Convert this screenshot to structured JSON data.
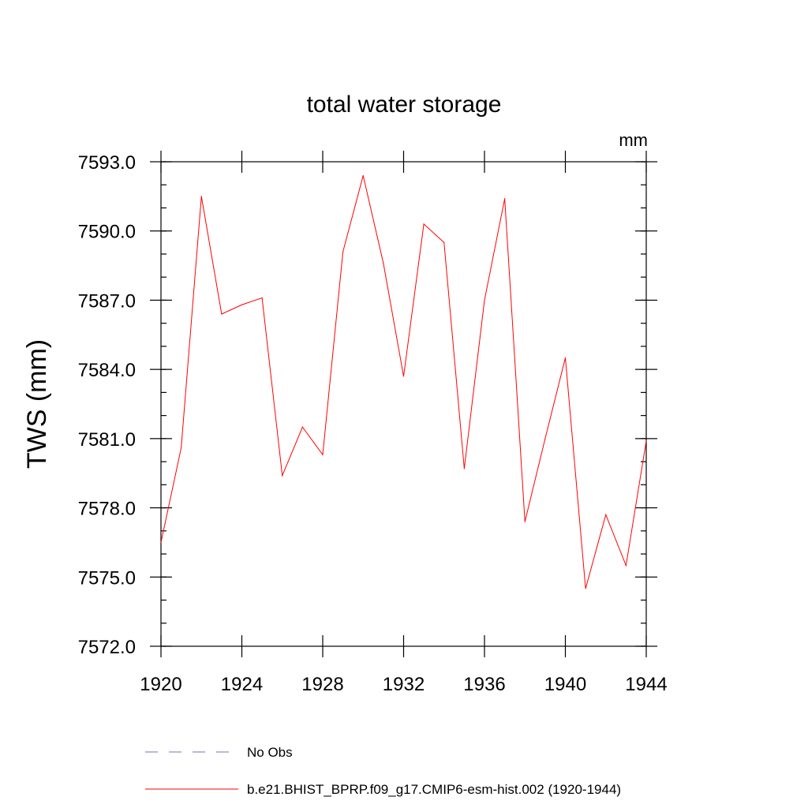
{
  "chart_data": {
    "type": "line",
    "title": "total water storage",
    "units_label": "mm",
    "ylabel": "TWS  (mm)",
    "xlabel": "",
    "xlim": [
      1920,
      1944
    ],
    "ylim": [
      7572.0,
      7593.0
    ],
    "x_ticks": [
      1920,
      1924,
      1928,
      1932,
      1936,
      1940,
      1944
    ],
    "x_tick_labels": [
      "1920",
      "1924",
      "1928",
      "1932",
      "1936",
      "1940",
      "1944"
    ],
    "y_ticks": [
      7572.0,
      7575.0,
      7578.0,
      7581.0,
      7584.0,
      7587.0,
      7590.0,
      7593.0
    ],
    "y_tick_labels": [
      "7572.0",
      "7575.0",
      "7578.0",
      "7581.0",
      "7584.0",
      "7587.0",
      "7590.0",
      "7593.0"
    ],
    "grid": false,
    "legend_position": "bottom",
    "series": [
      {
        "name": "b.e21.BHIST_BPRP.f09_g17.CMIP6-esm-hist.002 (1920-1944)",
        "color": "#ff0000",
        "style": "solid",
        "x": [
          1920,
          1921,
          1922,
          1923,
          1924,
          1925,
          1926,
          1927,
          1928,
          1929,
          1930,
          1931,
          1932,
          1933,
          1934,
          1935,
          1936,
          1937,
          1938,
          1939,
          1940,
          1941,
          1942,
          1943,
          1944
        ],
        "values": [
          7576.5,
          7580.6,
          7591.5,
          7586.4,
          7586.8,
          7587.1,
          7579.4,
          7581.5,
          7580.3,
          7589.1,
          7592.4,
          7588.6,
          7583.7,
          7590.3,
          7589.5,
          7579.7,
          7587.0,
          7591.4,
          7577.4,
          7581.0,
          7584.5,
          7574.5,
          7577.7,
          7575.5,
          7580.9
        ]
      }
    ],
    "legend": [
      {
        "label": "No Obs",
        "color": "#7b6fb0",
        "style": "dashed"
      },
      {
        "label": "b.e21.BHIST_BPRP.f09_g17.CMIP6-esm-hist.002 (1920-1944)",
        "color": "#ff0000",
        "style": "solid"
      }
    ]
  }
}
